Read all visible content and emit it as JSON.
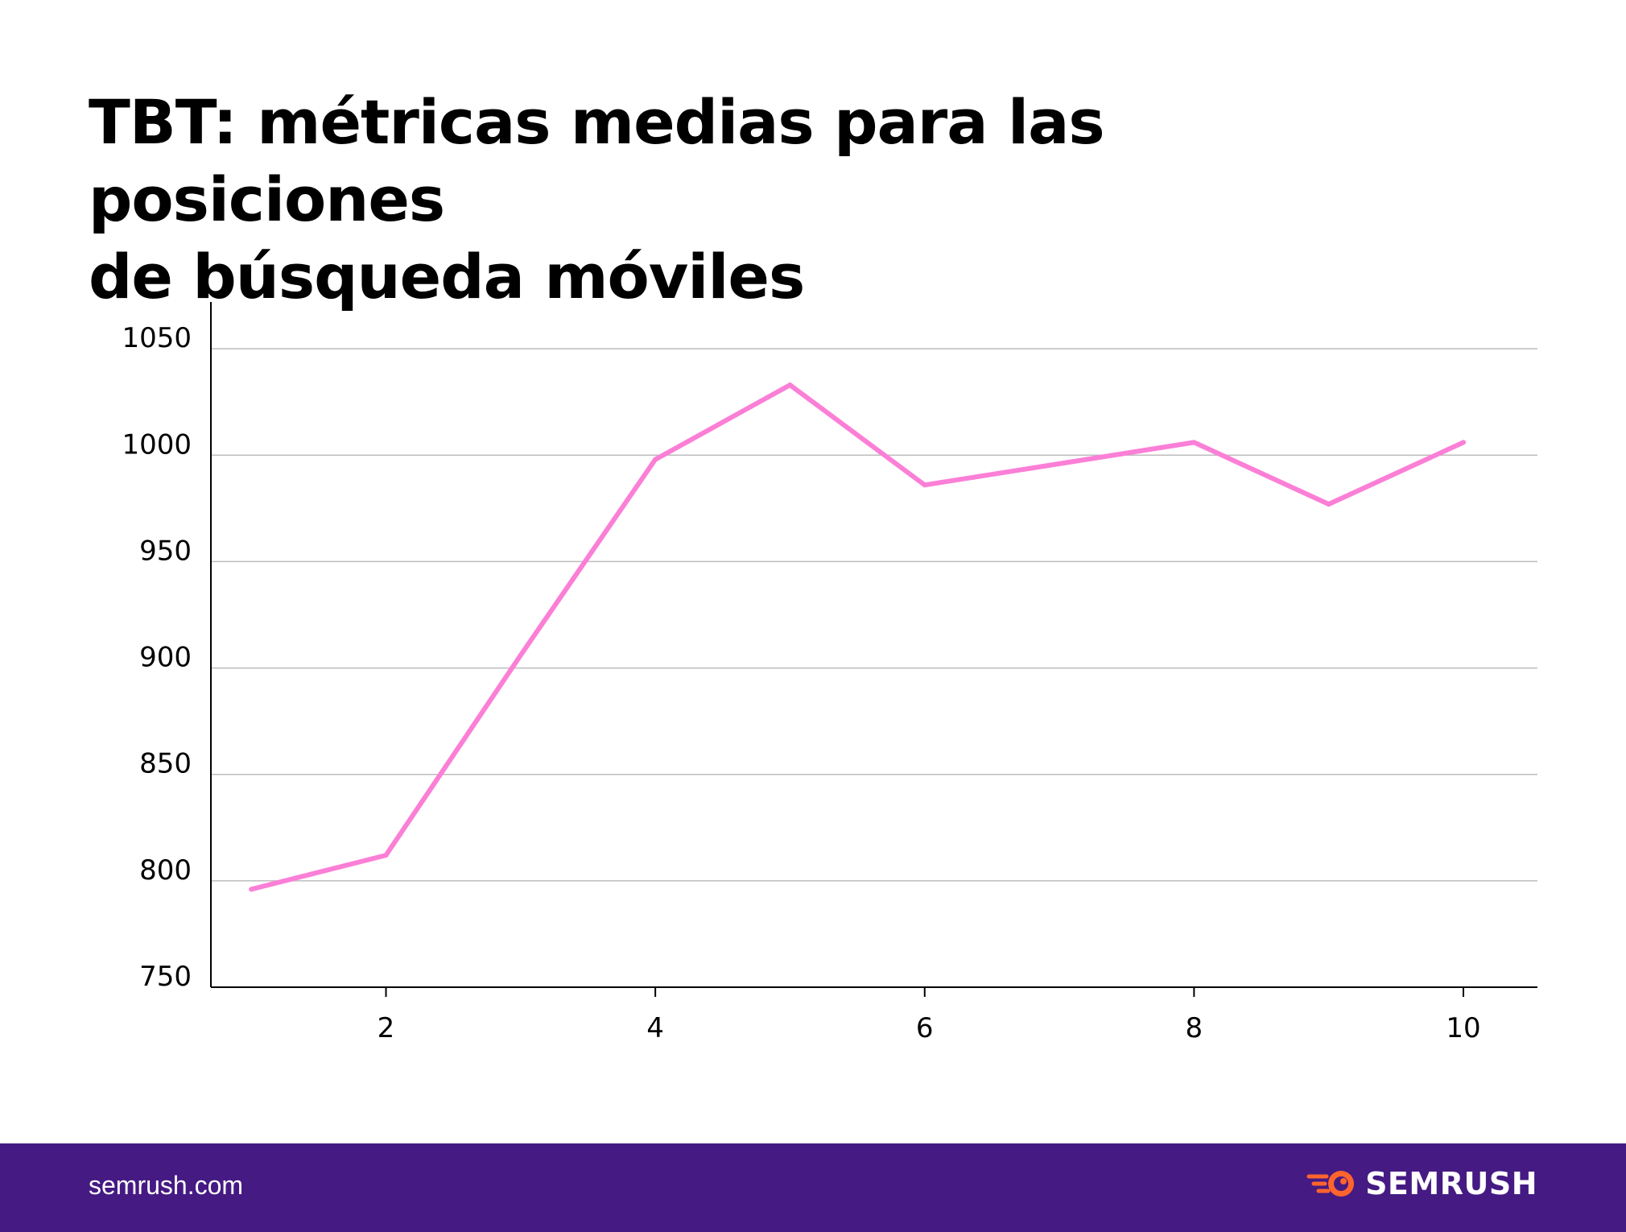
{
  "title_lines": [
    "TBT: métricas medias para las posiciones",
    "de búsqueda móviles"
  ],
  "footer": {
    "url": "semrush.com",
    "brand": "SEMRUSH",
    "brand_icon": "semrush-fireball-logo",
    "background": "#451a83",
    "brand_accent": "#ff642d"
  },
  "chart_data": {
    "type": "line",
    "title": "TBT: métricas medias para las posiciones de búsqueda móviles",
    "xlabel": "",
    "ylabel": "",
    "x": [
      1,
      2,
      3,
      4,
      5,
      6,
      7,
      8,
      9,
      10
    ],
    "series": [
      {
        "name": "TBT",
        "color": "#fb7fd6",
        "values": [
          796,
          812,
          906,
          998,
          1033,
          986,
          996,
          1006,
          977,
          1006
        ]
      }
    ],
    "xlim": [
      0.7,
      10.55
    ],
    "ylim": [
      750,
      1072
    ],
    "xticks": [
      2,
      4,
      6,
      8,
      10
    ],
    "xtick_labels": [
      "2",
      "4",
      "6",
      "8",
      "10"
    ],
    "yticks": [
      750,
      800,
      850,
      900,
      950,
      1000,
      1050
    ],
    "ytick_labels": [
      "750",
      "800",
      "850",
      "900",
      "950",
      "1000",
      "1050"
    ],
    "grid": true,
    "grid_color": "#bdbdbd",
    "legend": "none"
  }
}
